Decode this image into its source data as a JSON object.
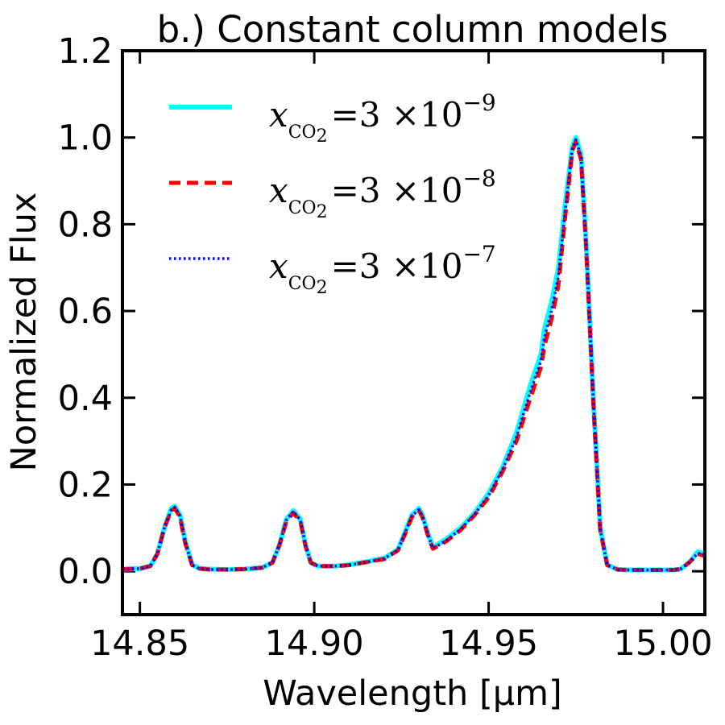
{
  "chart_data": {
    "type": "line",
    "title": "b.) Constant column models",
    "xlabel": "Wavelength [μm]",
    "ylabel": "Normalized Flux",
    "xlim": [
      14.845,
      15.012
    ],
    "ylim": [
      -0.1,
      1.2
    ],
    "xticks": [
      14.85,
      14.9,
      14.95,
      15.0
    ],
    "xtick_labels": [
      "14.85",
      "14.90",
      "14.95",
      "15.00"
    ],
    "yticks": [
      0.0,
      0.2,
      0.4,
      0.6,
      0.8,
      1.0,
      1.2
    ],
    "ytick_labels": [
      "0.0",
      "0.2",
      "0.4",
      "0.6",
      "0.8",
      "1.0",
      "1.2"
    ],
    "grid": false,
    "legend_position": "top-left",
    "series": [
      {
        "name": "x_CO2 = 3 ×10^-9",
        "legend_var": "x",
        "legend_sub": "CO",
        "legend_sub2": "2",
        "legend_eq": "=3 ×10",
        "legend_exp": "−9",
        "color": "#00ffff",
        "style": "solid",
        "x": [
          14.845,
          14.85,
          14.853,
          14.855,
          14.857,
          14.859,
          14.86,
          14.8615,
          14.863,
          14.865,
          14.867,
          14.87,
          14.875,
          14.88,
          14.885,
          14.888,
          14.89,
          14.892,
          14.894,
          14.896,
          14.8975,
          14.899,
          14.901,
          14.903,
          14.906,
          14.91,
          14.915,
          14.92,
          14.924,
          14.926,
          14.928,
          14.93,
          14.931,
          14.9325,
          14.934,
          14.936,
          14.938,
          14.942,
          14.946,
          14.95,
          14.954,
          14.958,
          14.962,
          14.965,
          14.966,
          14.968,
          14.97,
          14.972,
          14.974,
          14.975,
          14.9765,
          14.978,
          14.98,
          14.982,
          14.984,
          14.987,
          14.99,
          14.995,
          15.0,
          15.003,
          15.005,
          15.0075,
          15.01,
          15.012
        ],
        "values": [
          0.005,
          0.006,
          0.012,
          0.04,
          0.1,
          0.145,
          0.15,
          0.13,
          0.07,
          0.015,
          0.007,
          0.005,
          0.004,
          0.005,
          0.008,
          0.02,
          0.06,
          0.12,
          0.14,
          0.12,
          0.06,
          0.02,
          0.012,
          0.012,
          0.012,
          0.015,
          0.022,
          0.03,
          0.05,
          0.09,
          0.13,
          0.145,
          0.13,
          0.09,
          0.055,
          0.065,
          0.075,
          0.1,
          0.135,
          0.18,
          0.24,
          0.32,
          0.43,
          0.5,
          0.56,
          0.62,
          0.7,
          0.85,
          0.98,
          1.0,
          0.96,
          0.75,
          0.4,
          0.1,
          0.015,
          0.004,
          0.003,
          0.003,
          0.003,
          0.003,
          0.005,
          0.02,
          0.045,
          0.04
        ]
      },
      {
        "name": "x_CO2 = 3 ×10^-8",
        "legend_var": "x",
        "legend_sub": "CO",
        "legend_sub2": "2",
        "legend_eq": "=3 ×10",
        "legend_exp": "−8",
        "color": "#ff0000",
        "style": "dashed",
        "x": [
          14.845,
          14.85,
          14.853,
          14.855,
          14.857,
          14.859,
          14.86,
          14.8615,
          14.863,
          14.865,
          14.867,
          14.87,
          14.875,
          14.88,
          14.885,
          14.888,
          14.89,
          14.892,
          14.894,
          14.896,
          14.8975,
          14.899,
          14.901,
          14.903,
          14.906,
          14.91,
          14.915,
          14.92,
          14.924,
          14.926,
          14.928,
          14.93,
          14.931,
          14.9325,
          14.934,
          14.936,
          14.938,
          14.942,
          14.946,
          14.95,
          14.954,
          14.958,
          14.962,
          14.965,
          14.966,
          14.968,
          14.97,
          14.972,
          14.974,
          14.975,
          14.9765,
          14.978,
          14.98,
          14.982,
          14.984,
          14.987,
          14.99,
          14.995,
          15.0,
          15.003,
          15.005,
          15.0075,
          15.01,
          15.012
        ],
        "values": [
          0.005,
          0.006,
          0.012,
          0.04,
          0.1,
          0.14,
          0.145,
          0.125,
          0.065,
          0.014,
          0.006,
          0.004,
          0.004,
          0.005,
          0.008,
          0.02,
          0.06,
          0.115,
          0.135,
          0.115,
          0.058,
          0.02,
          0.012,
          0.012,
          0.012,
          0.014,
          0.021,
          0.028,
          0.048,
          0.085,
          0.125,
          0.14,
          0.125,
          0.085,
          0.052,
          0.06,
          0.07,
          0.095,
          0.13,
          0.17,
          0.23,
          0.3,
          0.4,
          0.47,
          0.52,
          0.58,
          0.66,
          0.82,
          0.97,
          0.99,
          0.95,
          0.74,
          0.39,
          0.095,
          0.014,
          0.004,
          0.003,
          0.003,
          0.003,
          0.003,
          0.005,
          0.02,
          0.04,
          0.035
        ]
      },
      {
        "name": "x_CO2 = 3 ×10^-7",
        "legend_var": "x",
        "legend_sub": "CO",
        "legend_sub2": "2",
        "legend_eq": "=3 ×10",
        "legend_exp": "−7",
        "color": "#0000ff",
        "style": "dotted",
        "x": [
          14.845,
          14.85,
          14.853,
          14.855,
          14.857,
          14.859,
          14.86,
          14.8615,
          14.863,
          14.865,
          14.867,
          14.87,
          14.875,
          14.88,
          14.885,
          14.888,
          14.89,
          14.892,
          14.894,
          14.896,
          14.8975,
          14.899,
          14.901,
          14.903,
          14.906,
          14.91,
          14.915,
          14.92,
          14.924,
          14.926,
          14.928,
          14.93,
          14.931,
          14.9325,
          14.934,
          14.936,
          14.938,
          14.942,
          14.946,
          14.95,
          14.954,
          14.958,
          14.962,
          14.965,
          14.966,
          14.968,
          14.97,
          14.972,
          14.974,
          14.975,
          14.9765,
          14.978,
          14.98,
          14.982,
          14.984,
          14.987,
          14.99,
          14.995,
          15.0,
          15.003,
          15.005,
          15.0075,
          15.01,
          15.012
        ],
        "values": [
          0.005,
          0.006,
          0.012,
          0.04,
          0.1,
          0.142,
          0.148,
          0.128,
          0.068,
          0.014,
          0.006,
          0.004,
          0.004,
          0.005,
          0.008,
          0.02,
          0.06,
          0.118,
          0.138,
          0.118,
          0.06,
          0.02,
          0.012,
          0.012,
          0.012,
          0.014,
          0.021,
          0.029,
          0.049,
          0.088,
          0.128,
          0.142,
          0.128,
          0.088,
          0.053,
          0.062,
          0.072,
          0.097,
          0.132,
          0.175,
          0.235,
          0.31,
          0.415,
          0.485,
          0.54,
          0.6,
          0.68,
          0.835,
          0.975,
          0.995,
          0.955,
          0.745,
          0.395,
          0.097,
          0.014,
          0.004,
          0.003,
          0.003,
          0.003,
          0.003,
          0.005,
          0.02,
          0.042,
          0.038
        ]
      }
    ]
  }
}
